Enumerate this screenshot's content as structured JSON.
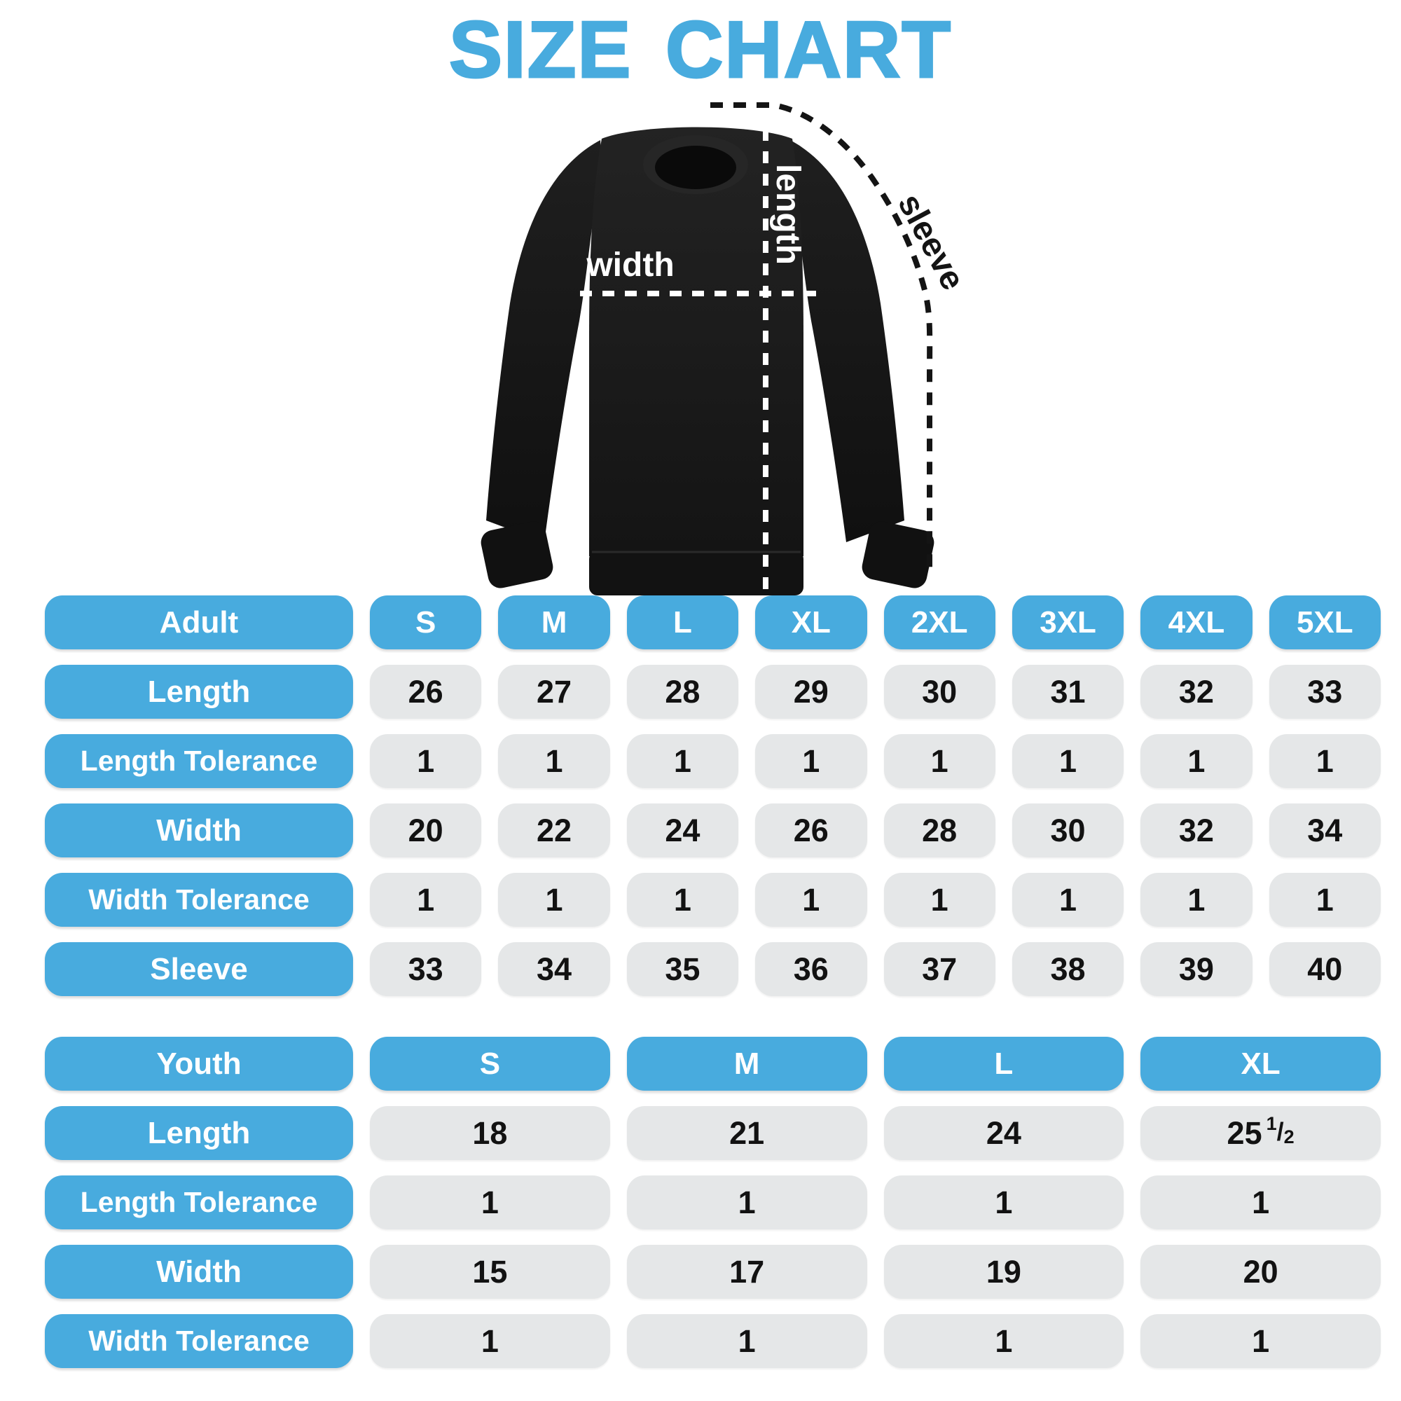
{
  "title": "SIZE CHART",
  "colors": {
    "accent_blue": "#48ABDE",
    "cell_gray": "#E5E7E8",
    "number_black": "#121212",
    "shirt_black": "#181818",
    "annotation_white": "#FFFFFF"
  },
  "diagram": {
    "garment": "crewneck-sweatshirt",
    "width_label": "width",
    "length_label": "length",
    "sleeve_label": "sleeve"
  },
  "adult_table": {
    "header": {
      "label": "Adult",
      "sizes": [
        "S",
        "M",
        "L",
        "XL",
        "2XL",
        "3XL",
        "4XL",
        "5XL"
      ]
    },
    "rows": [
      {
        "label": "Length",
        "values": [
          "26",
          "27",
          "28",
          "29",
          "30",
          "31",
          "32",
          "33"
        ]
      },
      {
        "label": "Length Tolerance",
        "values": [
          "1",
          "1",
          "1",
          "1",
          "1",
          "1",
          "1",
          "1"
        ]
      },
      {
        "label": "Width",
        "values": [
          "20",
          "22",
          "24",
          "26",
          "28",
          "30",
          "32",
          "34"
        ]
      },
      {
        "label": "Width Tolerance",
        "values": [
          "1",
          "1",
          "1",
          "1",
          "1",
          "1",
          "1",
          "1"
        ]
      },
      {
        "label": "Sleeve",
        "values": [
          "33",
          "34",
          "35",
          "36",
          "37",
          "38",
          "39",
          "40"
        ]
      }
    ]
  },
  "youth_table": {
    "header": {
      "label": "Youth",
      "sizes": [
        "S",
        "M",
        "L",
        "XL"
      ]
    },
    "rows": [
      {
        "label": "Length",
        "values": [
          "18",
          "21",
          "24",
          "25 1/2"
        ]
      },
      {
        "label": "Length Tolerance",
        "values": [
          "1",
          "1",
          "1",
          "1"
        ]
      },
      {
        "label": "Width",
        "values": [
          "15",
          "17",
          "19",
          "20"
        ]
      },
      {
        "label": "Width Tolerance",
        "values": [
          "1",
          "1",
          "1",
          "1"
        ]
      }
    ]
  },
  "chart_data": [
    {
      "type": "table",
      "title": "Adult",
      "columns": [
        "Adult",
        "S",
        "M",
        "L",
        "XL",
        "2XL",
        "3XL",
        "4XL",
        "5XL"
      ],
      "rows": [
        [
          "Length",
          26,
          27,
          28,
          29,
          30,
          31,
          32,
          33
        ],
        [
          "Length Tolerance",
          1,
          1,
          1,
          1,
          1,
          1,
          1,
          1
        ],
        [
          "Width",
          20,
          22,
          24,
          26,
          28,
          30,
          32,
          34
        ],
        [
          "Width Tolerance",
          1,
          1,
          1,
          1,
          1,
          1,
          1,
          1
        ],
        [
          "Sleeve",
          33,
          34,
          35,
          36,
          37,
          38,
          39,
          40
        ]
      ]
    },
    {
      "type": "table",
      "title": "Youth",
      "columns": [
        "Youth",
        "S",
        "M",
        "L",
        "XL"
      ],
      "rows": [
        [
          "Length",
          18,
          21,
          24,
          25.5
        ],
        [
          "Length Tolerance",
          1,
          1,
          1,
          1
        ],
        [
          "Width",
          15,
          17,
          19,
          20
        ],
        [
          "Width Tolerance",
          1,
          1,
          1,
          1
        ]
      ]
    }
  ]
}
